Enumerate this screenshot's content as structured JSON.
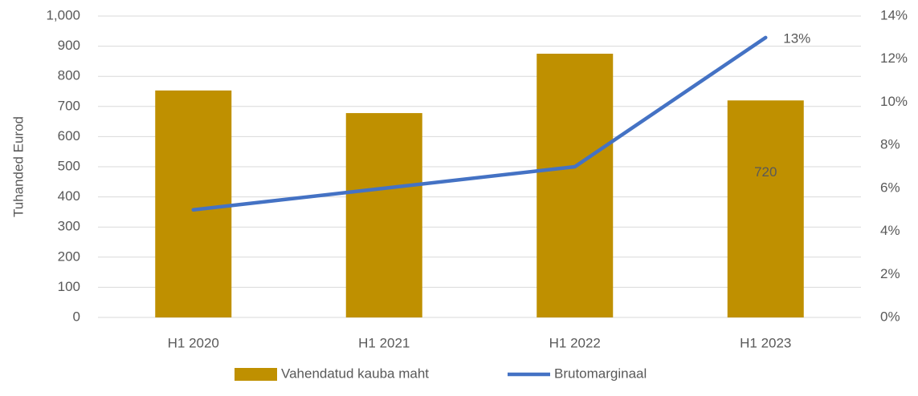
{
  "chart_data": {
    "type": "combo",
    "y_label": "Tuhanded Eurod",
    "categories": [
      "H1 2020",
      "H1 2021",
      "H1 2022",
      "H1 2023"
    ],
    "series": [
      {
        "name": "Vahendatud kauba maht",
        "type": "bar",
        "color": "#bf9000",
        "values": [
          753,
          678,
          875,
          720
        ],
        "value_labels": [
          null,
          null,
          null,
          "720"
        ]
      },
      {
        "name": "Brutomarginaal",
        "type": "line",
        "axis": "y2",
        "color": "#4472c4",
        "values": [
          5,
          6,
          7,
          13
        ],
        "value_labels": [
          null,
          null,
          null,
          "13%"
        ]
      }
    ],
    "ylim": [
      0,
      1000
    ],
    "yticks": [
      0,
      100,
      200,
      300,
      400,
      500,
      600,
      700,
      800,
      900,
      {
        "value": 1000,
        "label": "1,000"
      }
    ],
    "y2lim": [
      0,
      14
    ],
    "y2ticks": [
      {
        "value": 0,
        "label": "0%"
      },
      {
        "value": 2,
        "label": "2%"
      },
      {
        "value": 4,
        "label": "4%"
      },
      {
        "value": 6,
        "label": "6%"
      },
      {
        "value": 8,
        "label": "8%"
      },
      {
        "value": 10,
        "label": "10%"
      },
      {
        "value": 12,
        "label": "12%"
      },
      {
        "value": 14,
        "label": "14%"
      }
    ],
    "grid": true,
    "legend": "bottom"
  }
}
